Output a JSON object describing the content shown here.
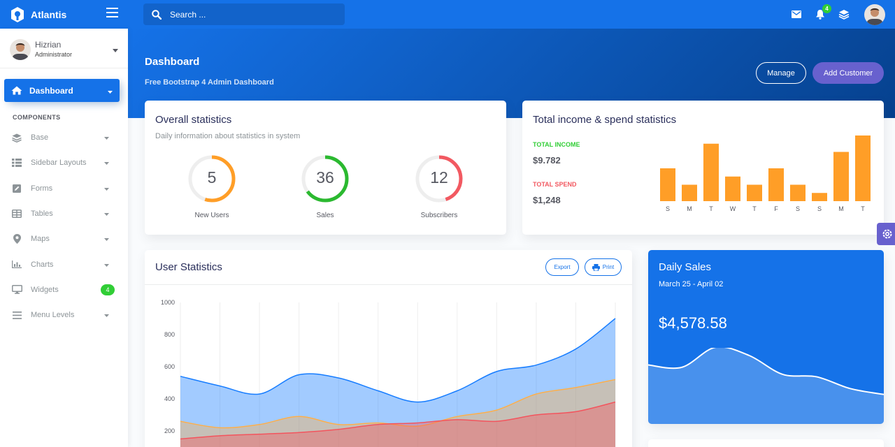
{
  "brand": {
    "name": "Atlantis"
  },
  "search": {
    "placeholder": "Search ..."
  },
  "notifications": {
    "count": "4"
  },
  "user": {
    "name": "Hizrian",
    "role": "Administrator"
  },
  "sidebar": {
    "active": "Dashboard",
    "section": "COMPONENTS",
    "items": [
      {
        "label": "Base",
        "icon": "layers-icon"
      },
      {
        "label": "Sidebar Layouts",
        "icon": "th-list-icon"
      },
      {
        "label": "Forms",
        "icon": "pen-square-icon"
      },
      {
        "label": "Tables",
        "icon": "table-icon"
      },
      {
        "label": "Maps",
        "icon": "map-marker-icon"
      },
      {
        "label": "Charts",
        "icon": "bar-chart-icon"
      },
      {
        "label": "Widgets",
        "icon": "desktop-icon",
        "badge": "4"
      },
      {
        "label": "Menu Levels",
        "icon": "bars-icon"
      }
    ]
  },
  "header": {
    "title": "Dashboard",
    "subtitle": "Free Bootstrap 4 Admin Dashboard",
    "manage": "Manage",
    "add_customer": "Add Customer"
  },
  "overall": {
    "title": "Overall statistics",
    "subtitle": "Daily information about statistics in system",
    "circles": [
      {
        "value": "5",
        "label": "New Users",
        "color": "#ff9e27",
        "fraction": 0.55
      },
      {
        "value": "36",
        "label": "Sales",
        "color": "#2bb930",
        "fraction": 0.65
      },
      {
        "value": "12",
        "label": "Subscribers",
        "color": "#f25961",
        "fraction": 0.45
      }
    ]
  },
  "income": {
    "title": "Total income & spend statistics",
    "income_label": "TOTAL INCOME",
    "income_value": "$9.782",
    "spend_label": "TOTAL SPEND",
    "spend_value": "$1,248",
    "income_color": "#31ce36",
    "spend_color": "#f25961"
  },
  "chart_data": [
    {
      "type": "bar",
      "categories": [
        "S",
        "M",
        "T",
        "W",
        "T",
        "F",
        "S",
        "S",
        "M",
        "T"
      ],
      "values": [
        4,
        2,
        7,
        3,
        2,
        4,
        2,
        1,
        6,
        8
      ],
      "color": "#ff9e27",
      "ylim": [
        0,
        8
      ]
    },
    {
      "type": "area",
      "title": "User Statistics",
      "x": [
        0,
        1,
        2,
        3,
        4,
        5,
        6,
        7,
        8,
        9,
        10,
        11
      ],
      "yticks": [
        "1000",
        "800",
        "600",
        "400",
        "200"
      ],
      "ylim": [
        0,
        1000
      ],
      "series": [
        {
          "values": [
            540,
            480,
            430,
            550,
            530,
            450,
            380,
            450,
            570,
            610,
            710,
            900
          ],
          "color": "#177dff"
        },
        {
          "values": [
            260,
            220,
            240,
            290,
            240,
            250,
            230,
            290,
            330,
            430,
            470,
            520
          ],
          "color": "#fdaf4b"
        },
        {
          "values": [
            150,
            170,
            180,
            190,
            210,
            240,
            250,
            270,
            260,
            300,
            320,
            380
          ],
          "color": "#f3545d"
        }
      ]
    },
    {
      "type": "area",
      "title": "Daily Sales",
      "x": [
        0,
        1,
        2,
        3,
        4,
        5,
        6,
        7
      ],
      "series": [
        {
          "values": [
            50,
            48,
            65,
            58,
            42,
            40,
            30,
            25
          ],
          "color": "#ffffff"
        }
      ]
    }
  ],
  "user_stats": {
    "title": "User Statistics",
    "export": "Export",
    "print": "Print"
  },
  "daily": {
    "title": "Daily Sales",
    "range": "March 25 - April 02",
    "amount": "$4,578.58"
  }
}
